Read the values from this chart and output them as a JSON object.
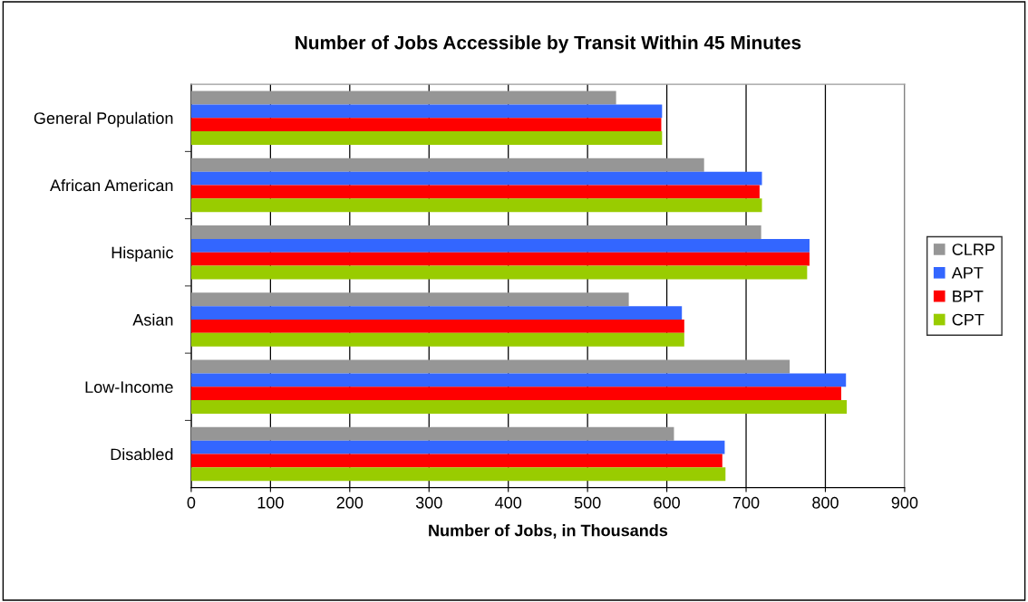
{
  "chart_data": {
    "type": "bar",
    "orientation": "horizontal",
    "title": "Number of Jobs Accessible by Transit Within 45 Minutes",
    "xlabel": "Number of Jobs, in Thousands",
    "categories": [
      "General Population",
      "African American",
      "Hispanic",
      "Asian",
      "Low-Income",
      "Disabled"
    ],
    "series": [
      {
        "name": "CLRP",
        "color": "#969696",
        "values": [
          536,
          647,
          719,
          552,
          755,
          609
        ]
      },
      {
        "name": "APT",
        "color": "#3366ff",
        "values": [
          594,
          720,
          780,
          619,
          826,
          673
        ]
      },
      {
        "name": "BPT",
        "color": "#ff0000",
        "values": [
          593,
          717,
          780,
          622,
          820,
          670
        ]
      },
      {
        "name": "CPT",
        "color": "#99cc00",
        "values": [
          594,
          720,
          777,
          622,
          827,
          674
        ]
      }
    ],
    "xlim": [
      0,
      900
    ],
    "xticks": [
      0,
      100,
      200,
      300,
      400,
      500,
      600,
      700,
      800,
      900
    ],
    "grid": "x",
    "legend": "right"
  }
}
